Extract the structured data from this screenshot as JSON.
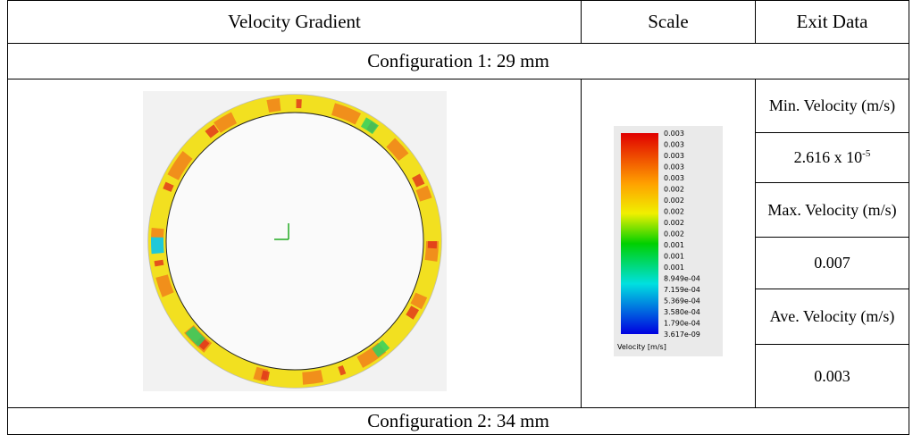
{
  "table": {
    "header": [
      "Velocity Gradient",
      "Scale",
      "Exit Data"
    ],
    "config1": "Configuration 1: 29 mm",
    "exit_data": {
      "min_label": "Min. Velocity (m/s)",
      "min_value": "2.616 x 10",
      "min_exponent": "-5",
      "max_label": "Max. Velocity (m/s)",
      "max_value": "0.007",
      "ave_label": "Ave. Velocity (m/s)",
      "ave_value": "0.003"
    },
    "scale": {
      "labels": [
        "0.003",
        "0.003",
        "0.003",
        "0.003",
        "0.003",
        "0.002",
        "0.002",
        "0.002",
        "0.002",
        "0.002",
        "0.001",
        "0.001",
        "0.001",
        "8.949e-04",
        "7.159e-04",
        "5.369e-04",
        "3.580e-04",
        "1.790e-04",
        "3.617e-09"
      ],
      "caption": "Velocity [m/s]"
    },
    "config2": "Configuration 2: 34 mm"
  }
}
